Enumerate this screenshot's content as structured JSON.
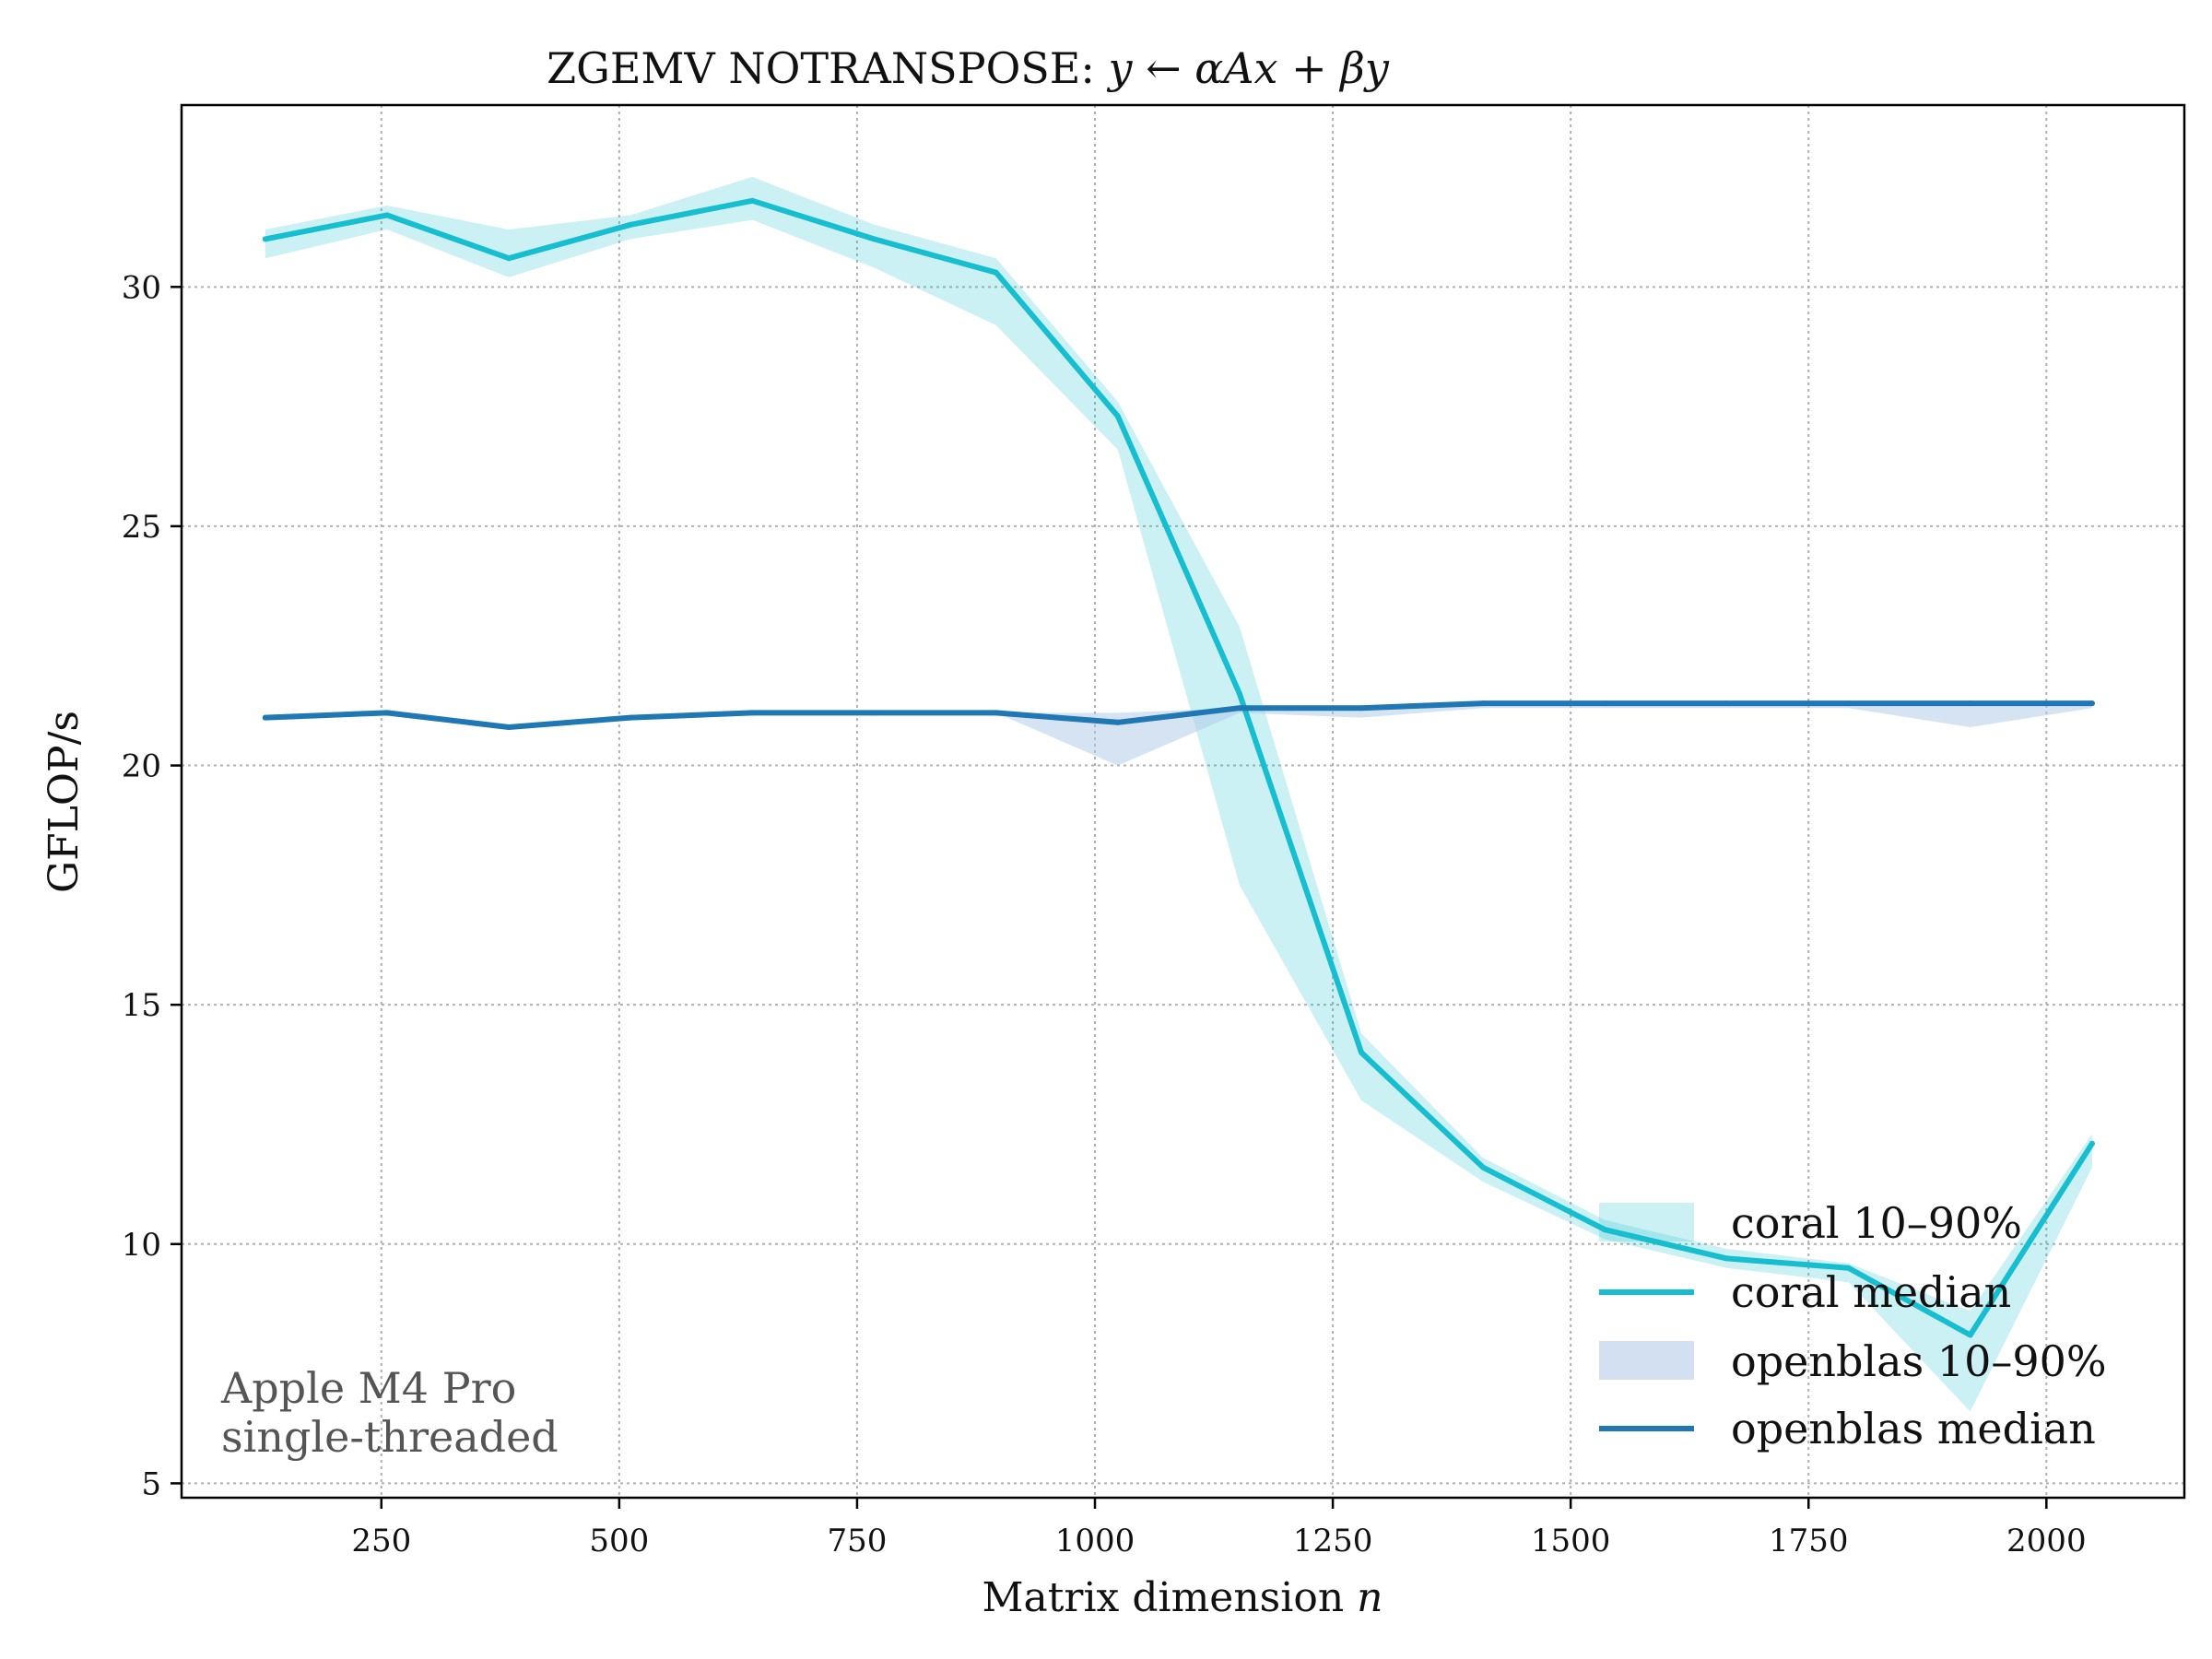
{
  "chart_data": {
    "type": "line",
    "title": "ZGEMV NOTRANSPOSE:",
    "title_math": "y ← αAx + βy",
    "xlabel": "Matrix dimension",
    "xlabel_math": "n",
    "ylabel": "GFLOP/s",
    "xlim": [
      40,
      2145
    ],
    "ylim": [
      4.7,
      33.8
    ],
    "xticks": [
      250,
      500,
      750,
      1000,
      1250,
      1500,
      1750,
      2000
    ],
    "xtick_labels": [
      "250",
      "500",
      "750",
      "1000",
      "1250",
      "1500",
      "1750",
      "2000"
    ],
    "yticks": [
      5,
      10,
      15,
      20,
      25,
      30
    ],
    "ytick_labels": [
      "5",
      "10",
      "15",
      "20",
      "25",
      "30"
    ],
    "grid": true,
    "x": [
      128,
      256,
      384,
      512,
      640,
      768,
      896,
      1024,
      1152,
      1280,
      1408,
      1536,
      1664,
      1792,
      1920,
      2048
    ],
    "series": [
      {
        "name": "coral median",
        "color": "#17becf",
        "values": [
          31.0,
          31.5,
          30.6,
          31.3,
          31.8,
          31.0,
          30.3,
          27.3,
          21.5,
          14.0,
          11.6,
          10.3,
          9.7,
          9.5,
          8.1,
          12.1
        ],
        "band_name": "coral 10–90%",
        "band_color": "#17becf",
        "band_low": [
          30.6,
          31.2,
          30.2,
          31.0,
          31.4,
          30.4,
          29.2,
          26.6,
          17.5,
          13.0,
          11.3,
          10.1,
          9.5,
          9.2,
          6.5,
          11.6
        ],
        "band_high": [
          31.2,
          31.7,
          31.2,
          31.5,
          32.3,
          31.3,
          30.6,
          27.6,
          22.9,
          14.4,
          11.8,
          10.5,
          9.9,
          9.6,
          8.6,
          12.3
        ]
      },
      {
        "name": "openblas median",
        "color": "#1f77b4",
        "values": [
          21.0,
          21.1,
          20.8,
          21.0,
          21.1,
          21.1,
          21.1,
          20.9,
          21.2,
          21.2,
          21.3,
          21.3,
          21.3,
          21.3,
          21.3,
          21.3
        ],
        "band_name": "openblas 10–90%",
        "band_color": "#aec7e8",
        "band_low": [
          21.0,
          21.1,
          20.8,
          21.0,
          21.1,
          21.1,
          21.1,
          20.0,
          21.1,
          21.0,
          21.2,
          21.2,
          21.2,
          21.2,
          20.8,
          21.2
        ],
        "band_high": [
          21.0,
          21.1,
          20.8,
          21.0,
          21.1,
          21.1,
          21.1,
          21.1,
          21.2,
          21.2,
          21.3,
          21.3,
          21.3,
          21.3,
          21.3,
          21.3
        ]
      }
    ],
    "legend": {
      "placement": "bottom-right",
      "entries": [
        {
          "label": "coral 10–90%",
          "kind": "band",
          "color": "#17becf"
        },
        {
          "label": "coral median",
          "kind": "line",
          "color": "#17becf"
        },
        {
          "label": "openblas 10–90%",
          "kind": "band",
          "color": "#aec7e8"
        },
        {
          "label": "openblas median",
          "kind": "line",
          "color": "#1f77b4"
        }
      ]
    },
    "annotation": [
      "Apple M4 Pro",
      "single-threaded"
    ]
  }
}
